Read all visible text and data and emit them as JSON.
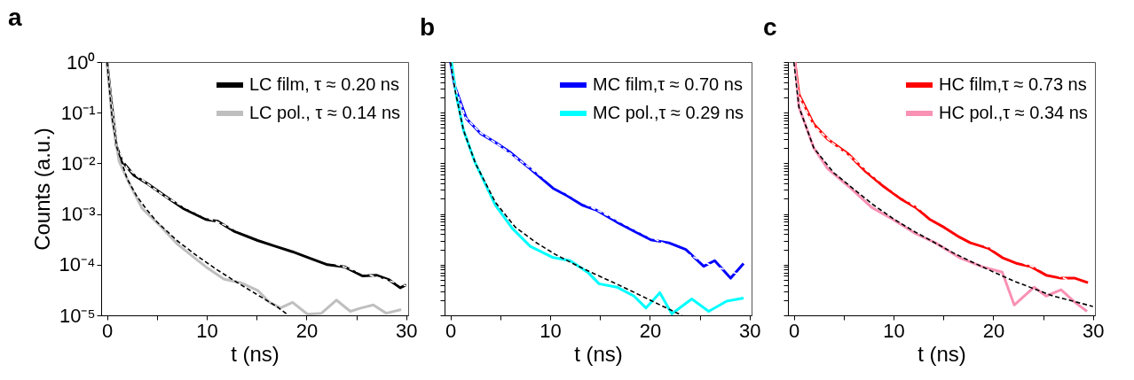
{
  "chart_data": [
    {
      "type": "line",
      "title": "a",
      "xlabel": "t (ns)",
      "ylabel": "Counts (a.u.)",
      "log": "y",
      "legend": "top right",
      "xlim": [
        -0.6,
        30.2
      ],
      "xticks": [
        0,
        {
          "value": 5,
          "label": null
        },
        10,
        {
          "value": 15,
          "label": null
        },
        20,
        {
          "value": 25,
          "label": null
        },
        30
      ],
      "ylim": [
        1e-05,
        1
      ],
      "yticks": [
        {
          "value": 1,
          "label": "10⁰"
        },
        {
          "value": 0.1,
          "label": "10⁻¹"
        },
        {
          "value": 0.01,
          "label": "10⁻²"
        },
        {
          "value": 0.001,
          "label": "10⁻³"
        },
        {
          "value": 0.0001,
          "label": "10⁻⁴"
        },
        {
          "value": 1e-05,
          "label": "10⁻⁵"
        }
      ],
      "series": [
        {
          "name": "LC film, τ ≈ 0.20 ns",
          "color": "#000000",
          "x": [
            0,
            0.35,
            0.93,
            1.5,
            2.7,
            4.1,
            5.9,
            7.6,
            9.9,
            11.1,
            12.8,
            15.1,
            16.9,
            18.6,
            20.3,
            22.1,
            23.8,
            25.6,
            27.0,
            28.3,
            29.4,
            30
          ],
          "values": [
            1,
            0.22,
            0.022,
            0.011,
            0.0058,
            0.0039,
            0.0022,
            0.0013,
            0.00078,
            0.00072,
            0.00045,
            0.0003,
            0.00023,
            0.00018,
            0.000135,
            0.0001,
            9.1e-05,
            6e-05,
            6.2e-05,
            5e-05,
            3.5e-05,
            4e-05
          ]
        },
        {
          "name": "LC pol., τ ≈ 0.14 ns",
          "color": "#bfbfbf",
          "x": [
            0,
            0.5,
            1.2,
            2.1,
            3.5,
            5.3,
            7.0,
            8.8,
            9.9,
            11.7,
            13.4,
            15.1,
            16.3,
            17.4,
            18.6,
            20.1,
            21.5,
            23,
            24.4,
            25.5,
            26.7,
            28,
            29.5
          ],
          "values": [
            1,
            0.074,
            0.011,
            0.0045,
            0.0013,
            0.00059,
            0.00026,
            0.000135,
            9.1e-05,
            5.2e-05,
            4.4e-05,
            3.1e-05,
            1.8e-05,
            1.4e-05,
            1.8e-05,
            1.05e-05,
            1.1e-05,
            2e-05,
            1.2e-05,
            1.4e-05,
            1.6e-05,
            1.1e-05,
            1.3e-05
          ]
        },
        {
          "color": "#ffffff",
          "line_style": "dashed",
          "x": [
            0,
            0.4,
            1,
            2,
            4,
            6,
            8,
            10,
            13,
            16,
            20,
            25,
            30
          ],
          "values": [
            1,
            0.2,
            0.02,
            0.008,
            0.004,
            0.0021,
            0.0013,
            0.00085,
            0.00048,
            0.00031,
            0.00016,
            7.5e-05,
            3.8e-05
          ]
        },
        {
          "color": "#000000",
          "line_style": "dashed",
          "x": [
            0,
            0.5,
            1,
            2,
            3,
            4,
            5,
            7,
            9,
            11,
            13,
            15,
            17,
            18.2
          ],
          "values": [
            1,
            0.08,
            0.02,
            0.005,
            0.0022,
            0.0012,
            0.0007,
            0.0003,
            0.00015,
            8e-05,
            4.5e-05,
            2.6e-05,
            1.5e-05,
            1e-05
          ]
        }
      ]
    },
    {
      "type": "line",
      "title": "b",
      "xlabel": "t (ns)",
      "log": "y",
      "legend": "top right",
      "tick_labels": "x",
      "xlim": [
        -0.6,
        30.2
      ],
      "xticks": [
        0,
        {
          "value": 5,
          "label": null
        },
        10,
        {
          "value": 15,
          "label": null
        },
        20,
        {
          "value": 25,
          "label": null
        },
        30
      ],
      "ylim": [
        1e-05,
        1
      ],
      "series": [
        {
          "name": "MC film,τ ≈ 0.70 ns",
          "color": "#0000ff",
          "x": [
            0,
            0.43,
            1.6,
            3.0,
            4.5,
            5.9,
            8.0,
            10.3,
            11.7,
            13.2,
            14.6,
            16.7,
            18.4,
            20.1,
            21.9,
            23.6,
            25.4,
            26.5,
            28.1,
            29.4
          ],
          "values": [
            1,
            0.33,
            0.076,
            0.039,
            0.026,
            0.017,
            0.0078,
            0.0032,
            0.0023,
            0.0015,
            0.0012,
            0.00069,
            0.00046,
            0.00031,
            0.00027,
            0.0002,
            9.3e-05,
            0.00012,
            5.4e-05,
            0.000105
          ]
        },
        {
          "name": "MC pol.,τ ≈ 0.29 ns",
          "color": "#00ffff",
          "x": [
            0.1,
            0.58,
            1.3,
            2.5,
            4.5,
            6.2,
            8.0,
            10.3,
            12.0,
            13.8,
            14.9,
            16.7,
            18.4,
            19.6,
            21.0,
            22.2,
            24.2,
            25.9,
            27.7,
            29.4
          ],
          "values": [
            1,
            0.22,
            0.045,
            0.01,
            0.0015,
            0.00052,
            0.00023,
            0.000138,
            0.00012,
            7e-05,
            4.2e-05,
            3.6e-05,
            2.4e-05,
            1.4e-05,
            2.8e-05,
            1.07e-05,
            2.1e-05,
            1.2e-05,
            1.9e-05,
            2.2e-05
          ]
        },
        {
          "color": "#ffffff",
          "line_style": "dashed",
          "x": [
            0,
            0.5,
            1.5,
            3,
            5,
            8,
            11,
            14,
            17,
            20,
            23,
            26,
            29.4
          ],
          "values": [
            1,
            0.3,
            0.08,
            0.04,
            0.022,
            0.008,
            0.003,
            0.0014,
            0.0007,
            0.00035,
            0.00019,
            0.0001,
            6e-05
          ]
        },
        {
          "color": "#000000",
          "line_style": "dashed",
          "x": [
            0,
            0.5,
            1.3,
            2.5,
            4.5,
            6.5,
            8.5,
            10.5,
            12.5,
            14.5,
            16.5,
            18.5,
            20.5,
            23.2
          ],
          "values": [
            1,
            0.25,
            0.045,
            0.01,
            0.0017,
            0.00055,
            0.00028,
            0.00016,
            0.0001,
            6.5e-05,
            4.3e-05,
            2.8e-05,
            1.8e-05,
            1e-05
          ]
        }
      ]
    },
    {
      "type": "line",
      "title": "c",
      "xlabel": "t (ns)",
      "log": "y",
      "legend": "top right",
      "tick_labels": "x",
      "xlim": [
        -0.6,
        30.2
      ],
      "xticks": [
        0,
        {
          "value": 5,
          "label": null
        },
        10,
        {
          "value": 15,
          "label": null
        },
        20,
        {
          "value": 25,
          "label": null
        },
        30
      ],
      "ylim": [
        1e-05,
        1
      ],
      "series": [
        {
          "name": "HC film,τ ≈ 0.73 ns",
          "color": "#ff0000",
          "x": [
            0.1,
            0.5,
            2.0,
            3.4,
            5.5,
            7.2,
            9.0,
            10.7,
            12.2,
            13.6,
            15.1,
            16.6,
            17.7,
            19.5,
            20.9,
            22.4,
            23.8,
            25.3,
            26.8,
            28.2,
            29.5
          ],
          "values": [
            1,
            0.23,
            0.059,
            0.03,
            0.015,
            0.0069,
            0.0035,
            0.002,
            0.00135,
            0.00079,
            0.00054,
            0.00035,
            0.00027,
            0.00021,
            0.000138,
            0.000105,
            9.1e-05,
            6.2e-05,
            5.4e-05,
            5.4e-05,
            4.4e-05
          ]
        },
        {
          "name": "HC pol.,τ ≈ 0.34 ns",
          "color": "#f991b4",
          "x": [
            0.1,
            0.5,
            2.0,
            3.4,
            5.5,
            7.8,
            9.9,
            12.2,
            14.2,
            16.6,
            18.9,
            20.9,
            22.1,
            24.1,
            25.3,
            26.8,
            28.2,
            29.4
          ],
          "values": [
            1,
            0.13,
            0.02,
            0.0078,
            0.0035,
            0.00135,
            0.00079,
            0.00041,
            0.00027,
            0.000138,
            9.1e-05,
            7.1e-05,
            1.6e-05,
            3.6e-05,
            2.4e-05,
            3.2e-05,
            1.8e-05,
            1.2e-05
          ]
        },
        {
          "color": "#ffffff",
          "line_style": "dashed",
          "x": [
            0,
            0.5,
            2,
            4,
            6,
            8,
            10,
            12,
            14,
            16,
            18,
            20,
            22,
            24,
            26,
            28,
            30
          ],
          "values": [
            1,
            0.22,
            0.055,
            0.024,
            0.012,
            0.0055,
            0.0028,
            0.0015,
            0.00085,
            0.0005,
            0.0003,
            0.0002,
            0.00013,
            9e-05,
            6.8e-05,
            4.5e-05,
            3e-05
          ]
        },
        {
          "color": "#000000",
          "line_style": "dashed",
          "x": [
            0,
            0.5,
            2,
            4,
            6,
            8,
            10,
            12,
            14,
            16,
            18,
            20,
            22,
            24,
            26,
            28,
            30
          ],
          "values": [
            1,
            0.13,
            0.02,
            0.0065,
            0.0031,
            0.0015,
            0.0008,
            0.00046,
            0.00028,
            0.00017,
            0.00011,
            7.2e-05,
            4.8e-05,
            3.4e-05,
            2.4e-05,
            1.9e-05,
            1.5e-05
          ]
        }
      ]
    }
  ]
}
